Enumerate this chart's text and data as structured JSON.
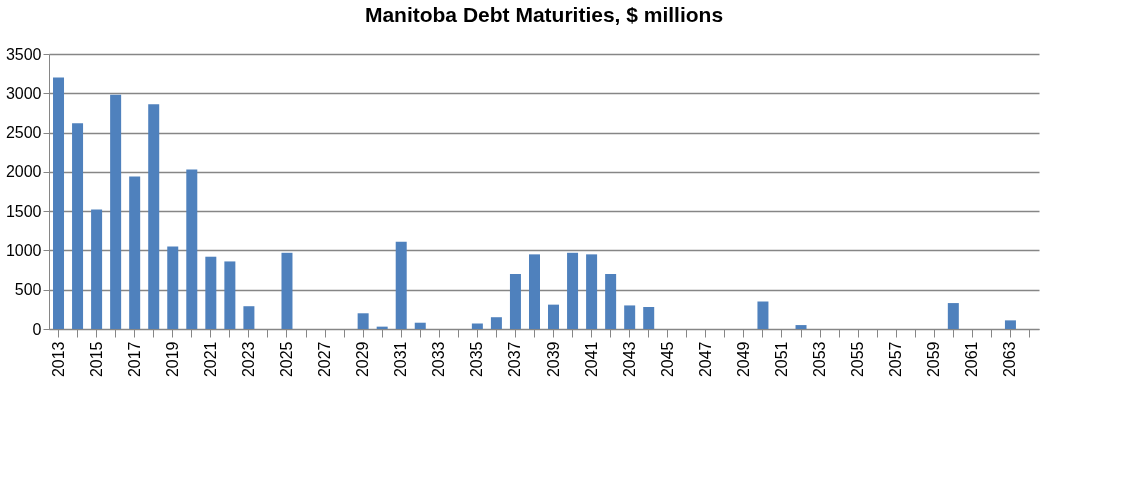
{
  "chart_data": {
    "type": "bar",
    "title": "Manitoba Debt Maturities, $ millions",
    "categories": [
      "2013",
      null,
      "2015",
      null,
      "2017",
      null,
      "2019",
      null,
      "2021",
      null,
      "2023",
      null,
      "2025",
      null,
      "2027",
      null,
      "2029",
      null,
      "2031",
      null,
      "2033",
      null,
      "2035",
      null,
      "2037",
      null,
      "2039",
      null,
      "2041",
      null,
      "2043",
      null,
      "2045",
      null,
      "2047",
      null,
      "2049",
      null,
      "2051",
      null,
      "2053",
      null,
      "2055",
      null,
      "2057",
      null,
      "2059",
      null,
      "2061",
      null,
      "2063",
      null
    ],
    "values": [
      3200,
      2620,
      1520,
      2980,
      1940,
      2860,
      1050,
      2030,
      920,
      860,
      290,
      0,
      970,
      0,
      0,
      0,
      200,
      30,
      1110,
      80,
      0,
      0,
      70,
      150,
      700,
      950,
      310,
      970,
      950,
      700,
      300,
      280,
      0,
      0,
      0,
      0,
      0,
      350,
      0,
      50,
      0,
      0,
      0,
      0,
      0,
      0,
      0,
      330,
      0,
      0,
      110,
      0
    ],
    "color": "#4f81bd",
    "ylim": [
      0,
      3500
    ],
    "yticks": [
      0,
      500,
      1000,
      1500,
      2000,
      2500,
      3000,
      3500
    ],
    "grid": "y"
  }
}
